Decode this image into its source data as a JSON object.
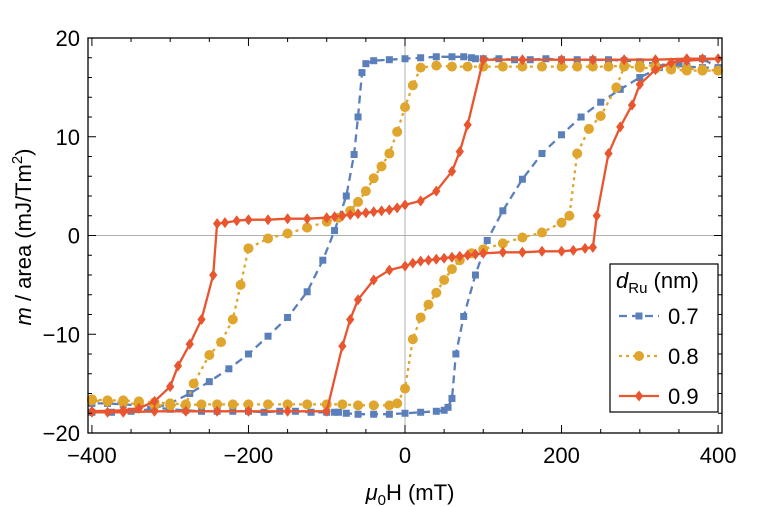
{
  "chart_data": {
    "type": "line",
    "xlabel": {
      "symbol": "μ",
      "sub": "0",
      "rest": "H (mT)"
    },
    "ylabel": {
      "symbol": "m",
      "rest": " / area (mJ/Tm",
      "sup": "2",
      "close": ")"
    },
    "xlim": [
      -405,
      405
    ],
    "ylim": [
      -20,
      20
    ],
    "xticks": [
      -400,
      -200,
      0,
      200,
      400
    ],
    "xtick_labels": [
      "−400",
      "−200",
      "0",
      "200",
      "400"
    ],
    "yticks": [
      -20,
      -10,
      0,
      10,
      20
    ],
    "ytick_labels": [
      "−20",
      "−10",
      "0",
      "10",
      "20"
    ],
    "grid": false,
    "zero_lines": true,
    "legend": {
      "title": {
        "symbol": "d",
        "sub": "Ru",
        "rest": " (nm)"
      },
      "placement": "right"
    },
    "series": [
      {
        "name": "0.7",
        "color": "#5a7fba",
        "marker": "square",
        "dash": "8,5",
        "x": [
          -400,
          -375,
          -350,
          -325,
          -300,
          -275,
          -250,
          -225,
          -200,
          -175,
          -150,
          -125,
          -105,
          -90,
          -75,
          -65,
          -60,
          -55,
          -50,
          -40,
          -20,
          0,
          20,
          40,
          60,
          75,
          85,
          90,
          100,
          120,
          140,
          160,
          180,
          200,
          220,
          240,
          260,
          280,
          300,
          320,
          340,
          360,
          380,
          400,
          380,
          350,
          325,
          300,
          275,
          250,
          225,
          200,
          175,
          150,
          125,
          105,
          90,
          75,
          65,
          60,
          55,
          50,
          40,
          20,
          0,
          -20,
          -40,
          -60,
          -75,
          -85,
          -90,
          -100,
          -120,
          -140,
          -160,
          -180,
          -200,
          -220,
          -240,
          -260,
          -280,
          -300,
          -320,
          -340,
          -360,
          -380,
          -400
        ],
        "y": [
          -17.9,
          -17.9,
          -17.8,
          -17.6,
          -17,
          -16,
          -14.8,
          -13.5,
          -12,
          -10.2,
          -8.3,
          -5.7,
          -2.5,
          0.5,
          4,
          8.2,
          12,
          16.5,
          17.4,
          17.7,
          17.8,
          17.9,
          18,
          18.1,
          18.1,
          18.1,
          18,
          17.9,
          17.9,
          17.9,
          17.8,
          17.8,
          17.9,
          17.8,
          17.8,
          17.8,
          17.8,
          17.7,
          17.6,
          17.4,
          17.2,
          17.1,
          17.0,
          17.0,
          17.9,
          17.6,
          17,
          16,
          14.8,
          13.5,
          12,
          10.2,
          8.3,
          5.7,
          2.5,
          -0.5,
          -4,
          -8.2,
          -12,
          -16.5,
          -17.4,
          -17.7,
          -17.8,
          -17.9,
          -18,
          -18.1,
          -18.1,
          -18.1,
          -18,
          -17.9,
          -17.9,
          -17.9,
          -17.9,
          -17.8,
          -17.8,
          -17.9,
          -17.8,
          -17.8,
          -17.8,
          -17.8,
          -17.7,
          -17.6,
          -17.4,
          -17.2,
          -17.1,
          -17.0,
          -17.0
        ]
      },
      {
        "name": "0.8",
        "color": "#e0a52c",
        "marker": "circle",
        "dash": "3,4",
        "x": [
          -400,
          -380,
          -360,
          -340,
          -320,
          -300,
          -280,
          -270,
          -250,
          -235,
          -220,
          -210,
          -200,
          -175,
          -150,
          -125,
          -100,
          -85,
          -70,
          -60,
          -50,
          -40,
          -30,
          -20,
          -10,
          0,
          10,
          20,
          40,
          60,
          80,
          100,
          125,
          150,
          175,
          200,
          220,
          240,
          260,
          280,
          300,
          320,
          340,
          360,
          380,
          400,
          380,
          360,
          340,
          320,
          300,
          280,
          270,
          250,
          235,
          220,
          210,
          200,
          175,
          150,
          125,
          100,
          85,
          70,
          60,
          50,
          40,
          30,
          20,
          10,
          0,
          -10,
          -20,
          -40,
          -60,
          -80,
          -100,
          -125,
          -150,
          -175,
          -200,
          -220,
          -240,
          -260,
          -280,
          -300,
          -320,
          -340,
          -360,
          -380,
          -400
        ],
        "y": [
          -16.6,
          -16.7,
          -16.7,
          -16.8,
          -16.9,
          -17.0,
          -17.1,
          -15.0,
          -12.1,
          -10.8,
          -8.5,
          -5,
          -1.3,
          -0.3,
          0.2,
          0.8,
          1.4,
          1.8,
          2.5,
          3.4,
          4.5,
          5.8,
          7.0,
          8.3,
          10.5,
          13,
          15.2,
          17.0,
          17.2,
          17.1,
          17.1,
          17.1,
          17.1,
          17.1,
          17.1,
          17.1,
          17.1,
          17.1,
          17.1,
          17.2,
          17.2,
          17.2,
          17.1,
          16.9,
          16.8,
          16.7,
          16.7,
          16.7,
          16.8,
          16.9,
          17.0,
          17.1,
          15.0,
          12.1,
          10.8,
          8.3,
          2,
          1.3,
          0.3,
          -0.2,
          -0.8,
          -1.4,
          -1.8,
          -2.5,
          -3.4,
          -4.5,
          -5.8,
          -7.0,
          -8.3,
          -10.5,
          -15.5,
          -17.0,
          -17.2,
          -17.2,
          -17.2,
          -17.1,
          -17.1,
          -17.1,
          -17.1,
          -17.1,
          -17.1,
          -17.1,
          -17.1,
          -17.1,
          -17.2,
          -17.2,
          -17.2,
          -17.1,
          -16.9,
          -16.8,
          -16.7
        ]
      },
      {
        "name": "0.9",
        "color": "#e8552e",
        "marker": "diamond",
        "dash": "",
        "x": [
          -400,
          -360,
          -340,
          -320,
          -300,
          -290,
          -275,
          -260,
          -245,
          -240,
          -230,
          -215,
          -200,
          -175,
          -150,
          -125,
          -100,
          -90,
          -80,
          -70,
          -60,
          -50,
          -40,
          -30,
          -20,
          -10,
          0,
          20,
          40,
          60,
          70,
          80,
          100,
          150,
          200,
          240,
          280,
          320,
          360,
          380,
          400,
          360,
          340,
          320,
          300,
          290,
          275,
          260,
          245,
          240,
          230,
          215,
          200,
          175,
          150,
          125,
          100,
          90,
          80,
          70,
          60,
          50,
          40,
          30,
          20,
          10,
          0,
          -20,
          -40,
          -60,
          -70,
          -80,
          -100,
          -150,
          -200,
          -240,
          -280,
          -320,
          -360,
          -380,
          -400
        ],
        "y": [
          -17.8,
          -17.7,
          -17.5,
          -16.8,
          -15.3,
          -13.2,
          -11,
          -8.5,
          -4,
          1.2,
          1.3,
          1.5,
          1.6,
          1.6,
          1.7,
          1.7,
          1.8,
          1.9,
          2.0,
          2.1,
          2.2,
          2.3,
          2.4,
          2.5,
          2.6,
          2.8,
          3.1,
          3.5,
          4.5,
          6.5,
          8.5,
          11.2,
          17.8,
          17.8,
          17.8,
          17.8,
          17.8,
          17.8,
          17.9,
          17.9,
          17.9,
          17.7,
          17.5,
          16.8,
          15.3,
          13.2,
          11,
          8.3,
          2,
          -1.2,
          -1.3,
          -1.5,
          -1.6,
          -1.6,
          -1.7,
          -1.7,
          -1.8,
          -1.9,
          -2.0,
          -2.1,
          -2.2,
          -2.3,
          -2.4,
          -2.5,
          -2.6,
          -2.8,
          -3.1,
          -3.5,
          -4.5,
          -6.5,
          -8.5,
          -11.2,
          -17.8,
          -17.8,
          -17.8,
          -17.8,
          -17.8,
          -17.8,
          -17.9,
          -17.9,
          -17.9
        ]
      }
    ]
  }
}
